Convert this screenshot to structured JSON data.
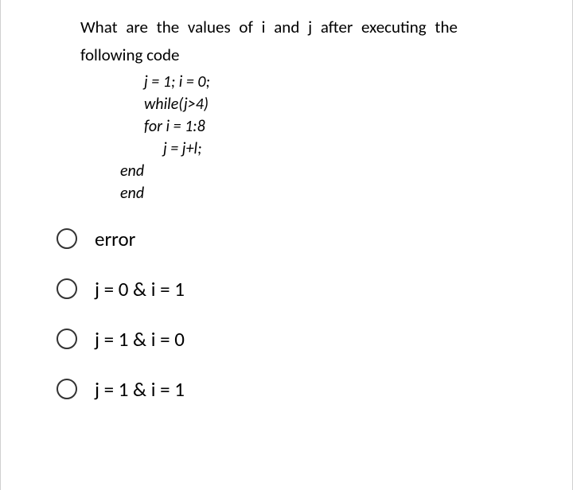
{
  "question": {
    "line1": "What are the values of i and j after executing the",
    "line2": "following code"
  },
  "code": {
    "line1": "j = 1; i = 0;",
    "line2": "while(j>4)",
    "line3": "for i = 1:8",
    "line4": "j = j+l;",
    "line5": "end",
    "line6": "end"
  },
  "options": [
    {
      "label": "error"
    },
    {
      "label": "j = 0 & i = 1"
    },
    {
      "label": "j = 1 & i = 0"
    },
    {
      "label": "j = 1 & i = 1"
    }
  ],
  "styling": {
    "background_color": "#ffffff",
    "text_color": "#000000",
    "radio_border_color": "#333333",
    "question_fontsize": 21,
    "code_fontsize": 20,
    "option_fontsize": 25
  }
}
